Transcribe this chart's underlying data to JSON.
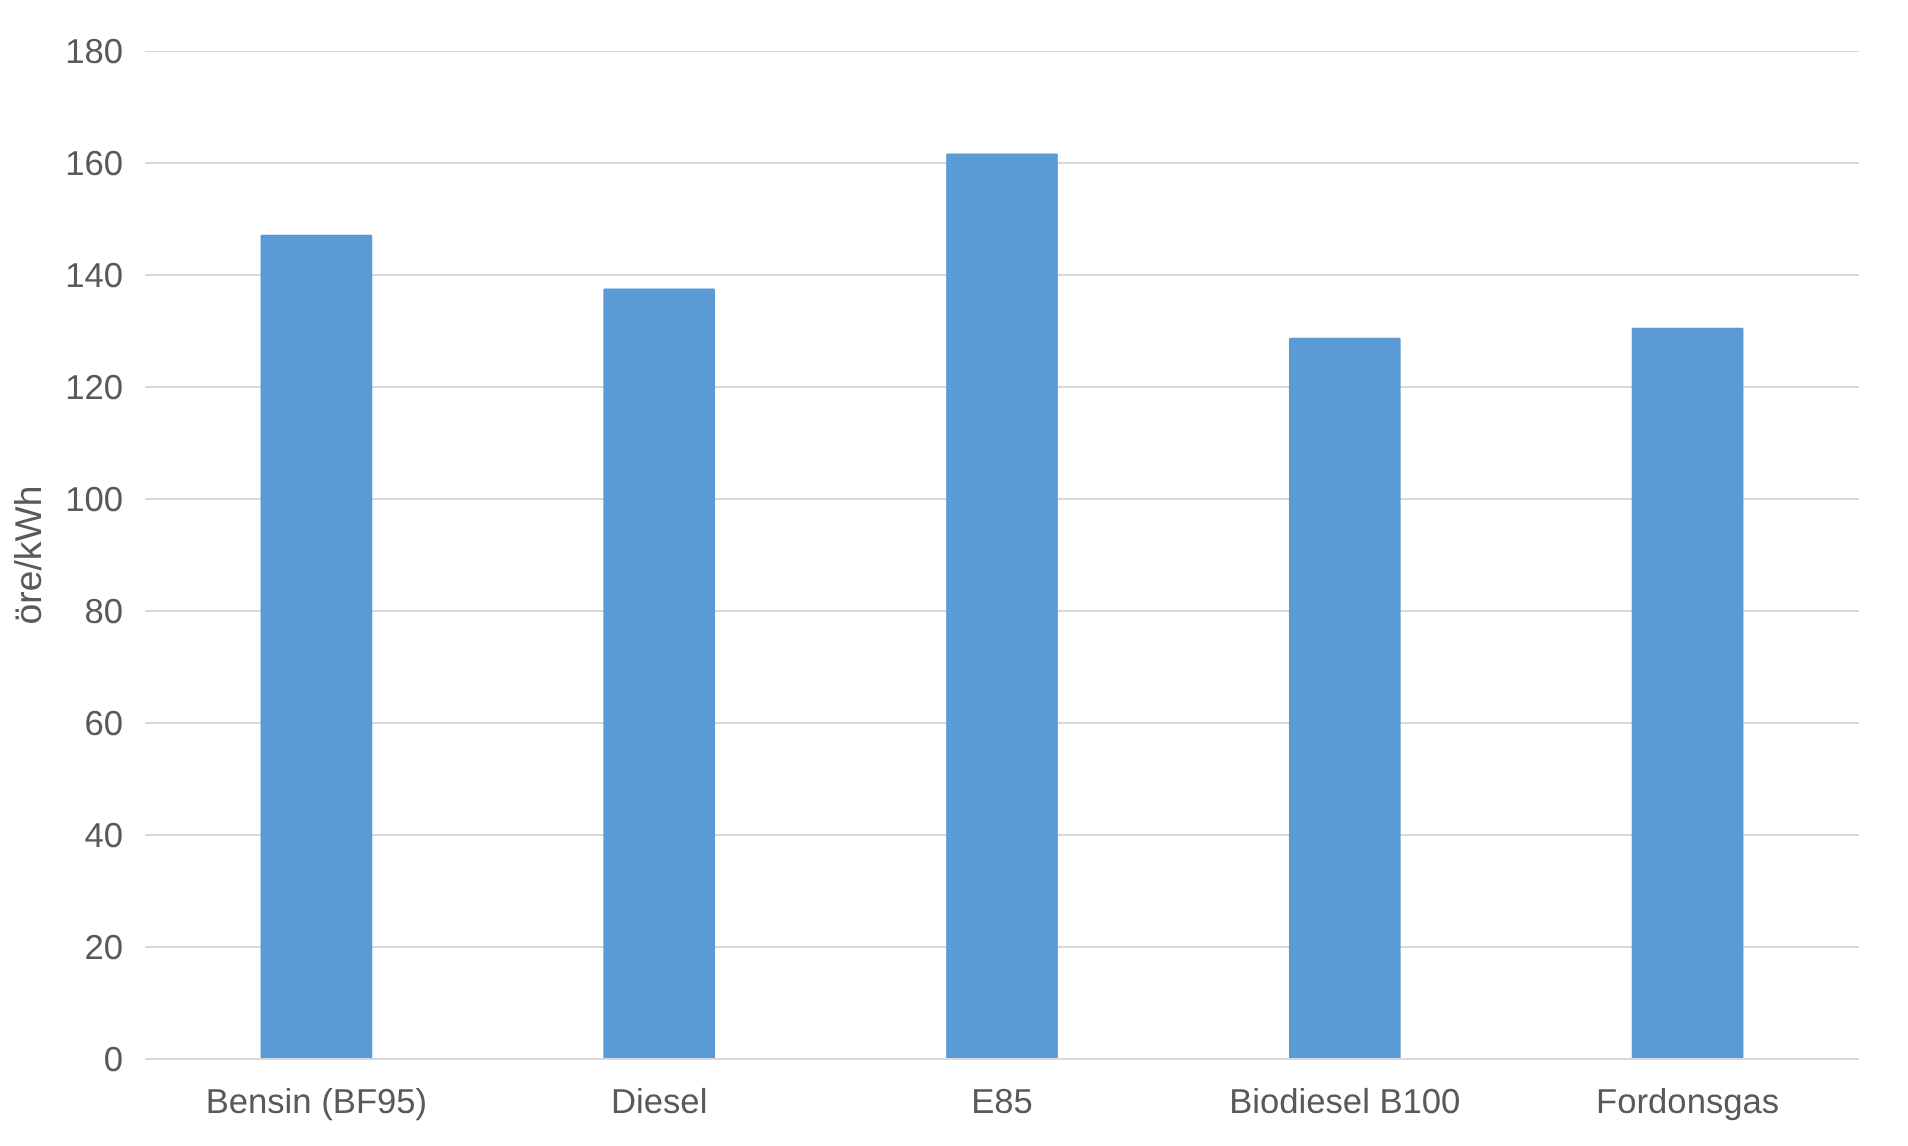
{
  "chart_data": {
    "type": "bar",
    "ylabel": "öre/kWh",
    "categories": [
      "Bensin (BF95)",
      "Diesel",
      "E85",
      "Biodiesel B100",
      "Fordonsgas"
    ],
    "series": [
      {
        "color": "#5b9bd5",
        "values": [
          147,
          137.4,
          161.5,
          128.6,
          130.4
        ]
      }
    ],
    "ylim": [
      0,
      180
    ],
    "yticks": [
      0,
      20,
      40,
      60,
      80,
      100,
      120,
      140,
      160,
      180
    ],
    "grid": "y"
  }
}
